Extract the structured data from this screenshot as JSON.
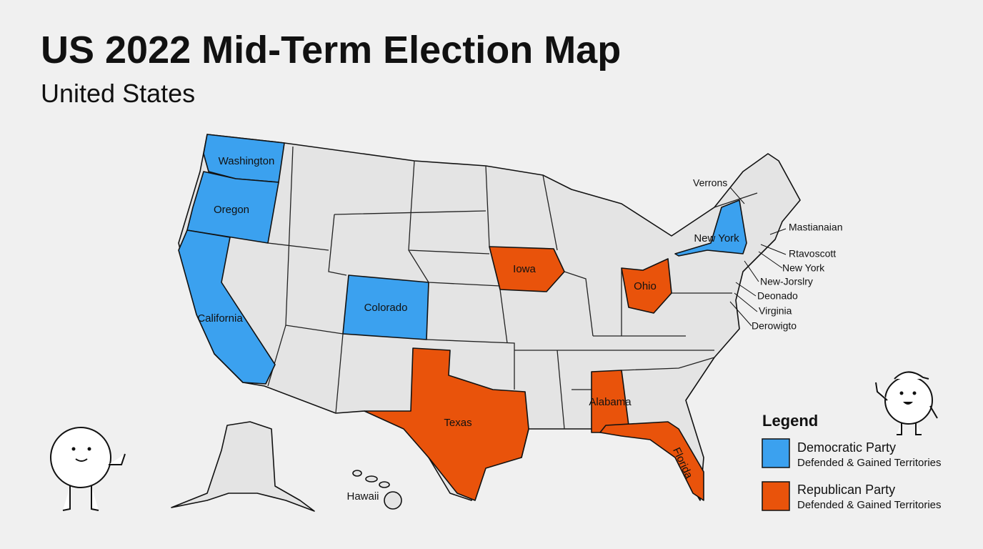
{
  "header": {
    "title": "US 2022 Mid-Term Election Map",
    "subtitle": "United States"
  },
  "map": {
    "state_labels": [
      "Washington",
      "Oregon",
      "California",
      "Colorado",
      "Iowa",
      "Ohio",
      "Texas",
      "Alabama",
      "Florida",
      "New York",
      "Hawaii"
    ],
    "callouts": [
      "Verrons",
      "Mastianaian",
      "Rtavoscott",
      "New York",
      "New-Jorslry",
      "Deonado",
      "Virginia",
      "Derowigto"
    ]
  },
  "legend": {
    "title": "Legend",
    "items": [
      {
        "name": "Democratic Party",
        "description": "Defended & Gained Territories"
      },
      {
        "name": "Republican Party",
        "description": "Defended & Gained Territories"
      }
    ]
  }
}
